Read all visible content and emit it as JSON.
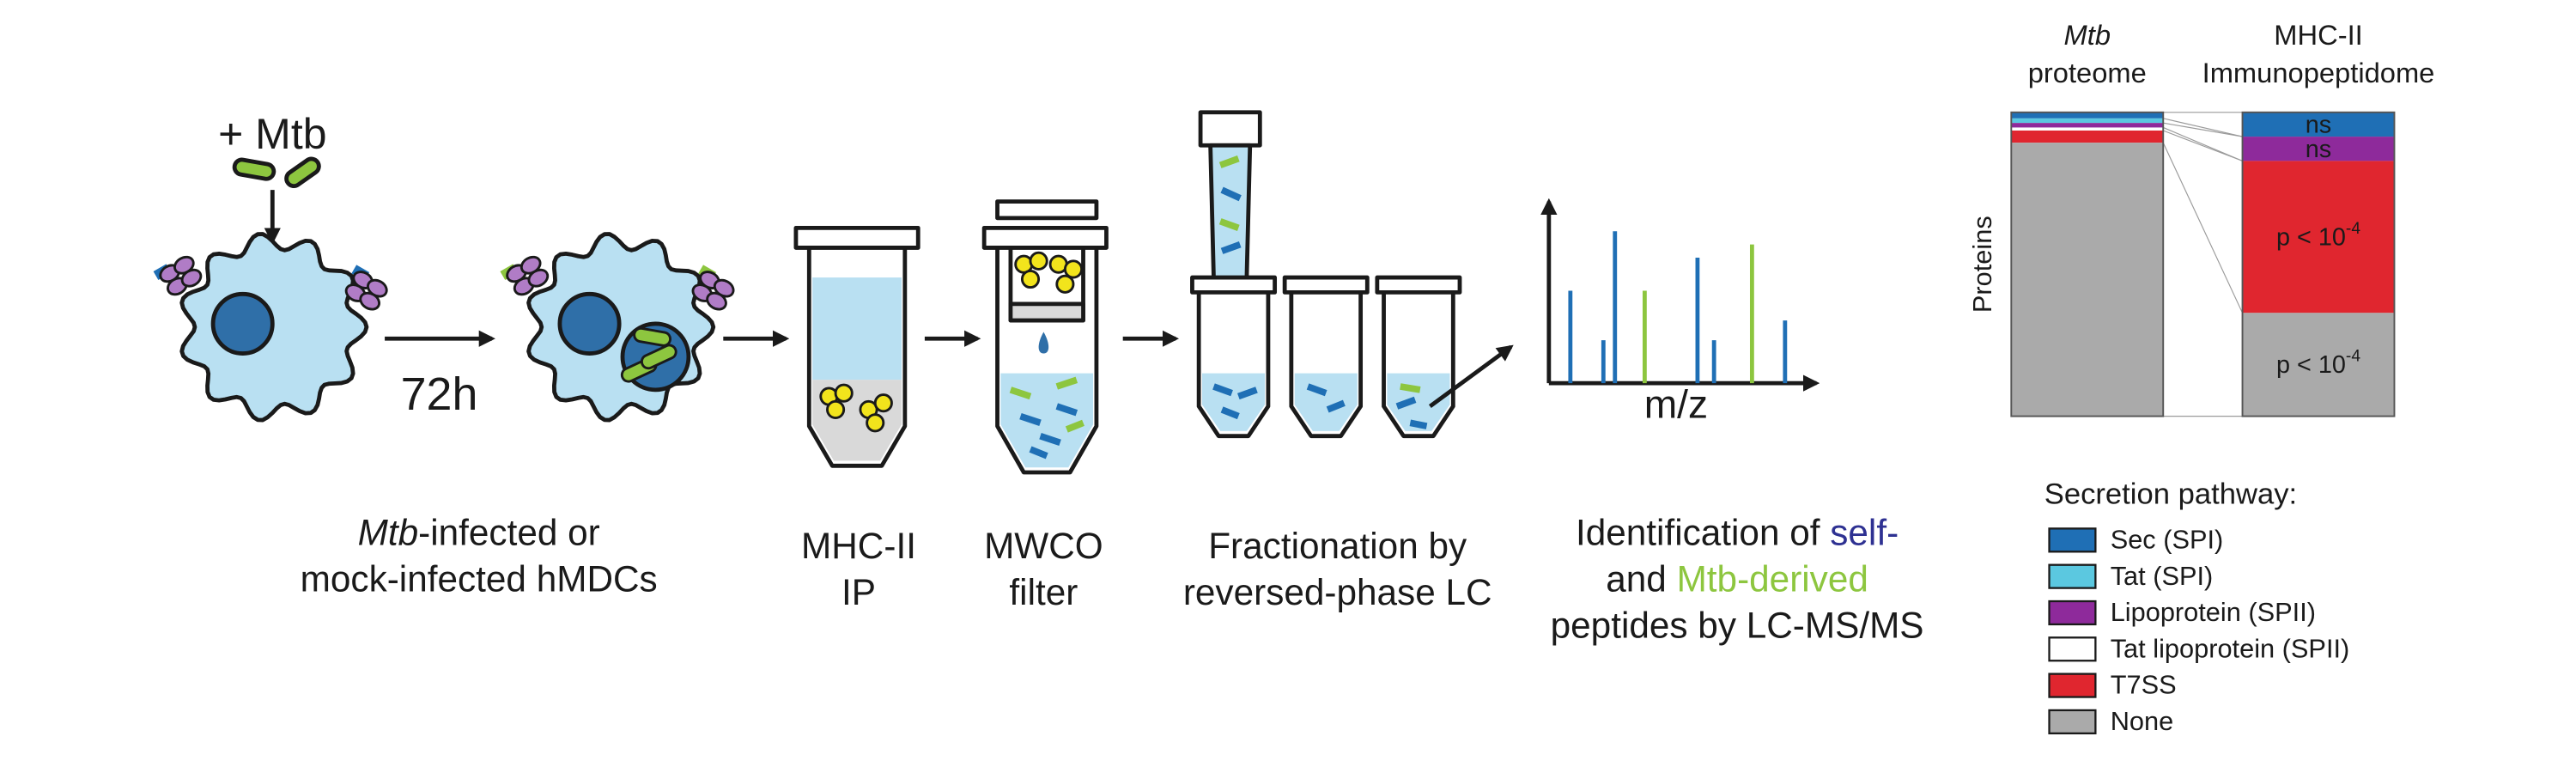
{
  "diagram": {
    "infection_label": "+ Mtb",
    "time": "72h",
    "spectrum_axis": "m/z",
    "steps": [
      {
        "lines": [
          [
            {
              "text": "Mtb",
              "italic": true
            },
            {
              "text": "-infected or"
            }
          ],
          [
            {
              "text": "mock-infected hMDCs"
            }
          ]
        ]
      },
      {
        "lines": [
          [
            {
              "text": "MHC-II"
            }
          ],
          [
            {
              "text": "IP"
            }
          ]
        ]
      },
      {
        "lines": [
          [
            {
              "text": "MWCO"
            }
          ],
          [
            {
              "text": "filter"
            }
          ]
        ]
      },
      {
        "lines": [
          [
            {
              "text": "Fractionation by"
            }
          ],
          [
            {
              "text": "reversed-phase LC"
            }
          ]
        ]
      },
      {
        "lines": [
          [
            {
              "text": "Identification of "
            },
            {
              "text": "self-",
              "color": "#2e3192"
            }
          ],
          [
            {
              "text": "and "
            },
            {
              "text": "Mtb-derived",
              "color": "#8dc63f"
            }
          ],
          [
            {
              "text": "peptides by LC-MS/MS"
            }
          ]
        ]
      }
    ]
  },
  "chart_data": {
    "type": "stacked_bar",
    "columns": [
      {
        "line1": "Mtb",
        "line2": "proteome"
      },
      {
        "line1": "MHC-II",
        "line2": "Immunopeptidome"
      }
    ],
    "ylabel": "Proteins",
    "ylim": [
      0,
      100
    ],
    "legend_title": "Secretion pathway:",
    "series": [
      {
        "name": "Sec (SPI)",
        "color": "#1f6fb5",
        "values": [
          2,
          8
        ],
        "significance": "ns"
      },
      {
        "name": "Tat (SPI)",
        "color": "#5bc8e0",
        "values": [
          1.5,
          0
        ]
      },
      {
        "name": "Lipoprotein (SPII)",
        "color": "#8e2a9b",
        "values": [
          1.5,
          8
        ],
        "significance": "ns"
      },
      {
        "name": "Tat lipoprotein (SPII)",
        "color": "#ffffff",
        "values": [
          1,
          0
        ]
      },
      {
        "name": "T7SS",
        "color": "#e0262f",
        "values": [
          4,
          50
        ],
        "significance": {
          "text": "p < 10",
          "exponent": "-4"
        }
      },
      {
        "name": "None",
        "color": "#aaaaaa",
        "values": [
          90,
          34
        ],
        "significance": {
          "text": "p < 10",
          "exponent": "-4"
        }
      }
    ]
  }
}
